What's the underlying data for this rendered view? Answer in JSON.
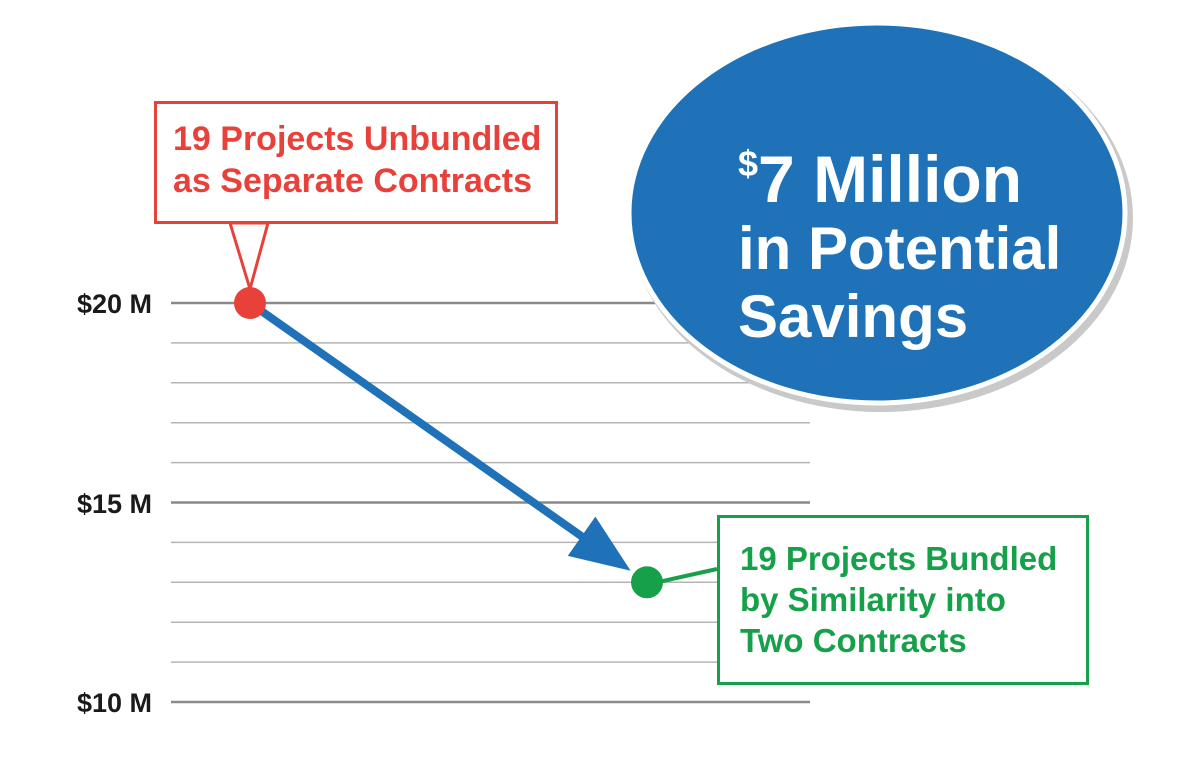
{
  "chart_data": {
    "type": "line",
    "ylim": [
      10,
      20
    ],
    "y_ticks": [
      {
        "value": 20,
        "label": "$20 M"
      },
      {
        "value": 15,
        "label": "$15 M"
      },
      {
        "value": 10,
        "label": "$10 M"
      }
    ],
    "minor_gridlines_per_major": 4,
    "grid": true,
    "points": [
      {
        "name": "unbundled",
        "value": 20.0,
        "color": "#e8413a",
        "annotation": [
          "19 Projects Unbundled",
          "as Separate Contracts"
        ]
      },
      {
        "name": "bundled",
        "value": 13.0,
        "color": "#16a04a",
        "annotation": [
          "19 Projects Bundled",
          "by Similarity into",
          "Two Contracts"
        ]
      }
    ],
    "arrow_color": "#1f72b8",
    "highlight": {
      "currency": "$",
      "amount": "7",
      "line1_rest": " Million",
      "line2": "in Potential",
      "line3": "Savings",
      "color": "#1f72b8"
    }
  }
}
